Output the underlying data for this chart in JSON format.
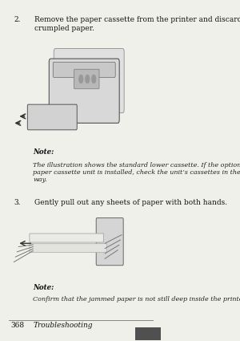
{
  "bg_color": "#e8e8e8",
  "page_bg": "#f0f0eb",
  "footer_label": "368",
  "footer_text": "Troubleshooting",
  "step2_number": "2.",
  "step2_text": "Remove the paper cassette from the printer and discard any\ncrumpled paper.",
  "note1_title": "Note:",
  "note1_body": "The illustration shows the standard lower cassette. If the optional\npaper cassette unit is installed, check the unit’s cassettes in the same\nway.",
  "step3_number": "3.",
  "step3_text": "Gently pull out any sheets of paper with both hands.",
  "note2_title": "Note:",
  "note2_body": "Confirm that the jammed paper is not still deep inside the printer.",
  "text_color": "#111111",
  "note_color": "#222222",
  "footer_line_color": "#888888"
}
